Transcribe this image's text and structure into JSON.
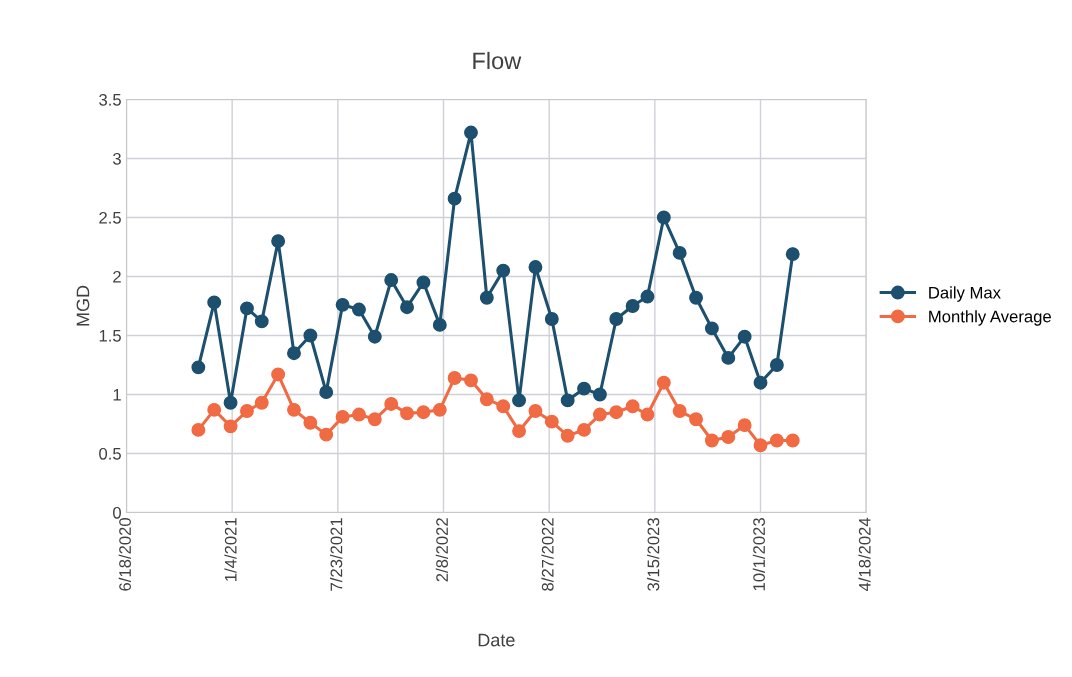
{
  "chart_data": {
    "type": "line",
    "title": "Flow",
    "xlabel": "Date",
    "ylabel": "MGD",
    "x": [
      "2020-11-01",
      "2020-12-01",
      "2021-01-01",
      "2021-02-01",
      "2021-03-01",
      "2021-04-01",
      "2021-05-01",
      "2021-06-01",
      "2021-07-01",
      "2021-08-01",
      "2021-09-01",
      "2021-10-01",
      "2021-11-01",
      "2021-12-01",
      "2022-01-01",
      "2022-02-01",
      "2022-03-01",
      "2022-04-01",
      "2022-05-01",
      "2022-06-01",
      "2022-07-01",
      "2022-08-01",
      "2022-09-01",
      "2022-10-01",
      "2022-11-01",
      "2022-12-01",
      "2023-01-01",
      "2023-02-01",
      "2023-03-01",
      "2023-04-01",
      "2023-05-01",
      "2023-06-01",
      "2023-07-01",
      "2023-08-01",
      "2023-09-01",
      "2023-10-01",
      "2023-11-01",
      "2023-12-01"
    ],
    "series": [
      {
        "name": "Daily Max",
        "color": "#1d4f6e",
        "values": [
          1.23,
          1.78,
          0.93,
          1.73,
          1.62,
          2.3,
          1.35,
          1.5,
          1.02,
          1.76,
          1.72,
          1.49,
          1.97,
          1.74,
          1.95,
          1.59,
          2.66,
          3.22,
          1.82,
          2.05,
          0.95,
          2.08,
          1.64,
          0.95,
          1.05,
          1.0,
          1.64,
          1.75,
          1.83,
          2.5,
          2.2,
          1.82,
          1.56,
          1.31,
          1.49,
          1.1,
          1.25,
          2.19
        ]
      },
      {
        "name": "Monthly Average",
        "color": "#f06a43",
        "values": [
          0.7,
          0.87,
          0.73,
          0.86,
          0.93,
          1.17,
          0.87,
          0.76,
          0.66,
          0.81,
          0.83,
          0.79,
          0.92,
          0.84,
          0.85,
          0.87,
          1.14,
          1.12,
          0.96,
          0.9,
          0.69,
          0.86,
          0.77,
          0.65,
          0.7,
          0.83,
          0.85,
          0.9,
          0.83,
          1.1,
          0.86,
          0.79,
          0.61,
          0.64,
          0.74,
          0.57,
          0.61,
          0.61
        ]
      }
    ],
    "xlim": [
      "2020-06-18",
      "2024-04-18"
    ],
    "xticks": [
      {
        "value": "2020-06-18",
        "label": "6/18/2020"
      },
      {
        "value": "2021-01-04",
        "label": "1/4/2021"
      },
      {
        "value": "2021-07-23",
        "label": "7/23/2021"
      },
      {
        "value": "2022-02-08",
        "label": "2/8/2022"
      },
      {
        "value": "2022-08-27",
        "label": "8/27/2022"
      },
      {
        "value": "2023-03-15",
        "label": "3/15/2023"
      },
      {
        "value": "2023-10-01",
        "label": "10/1/2023"
      },
      {
        "value": "2024-04-18",
        "label": "4/18/2024"
      }
    ],
    "ylim": [
      0,
      3.5
    ],
    "yticks": [
      0,
      0.5,
      1,
      1.5,
      2,
      2.5,
      3,
      3.5
    ],
    "grid": true,
    "legend": "right",
    "marker": "circle",
    "line_style": "solid"
  }
}
